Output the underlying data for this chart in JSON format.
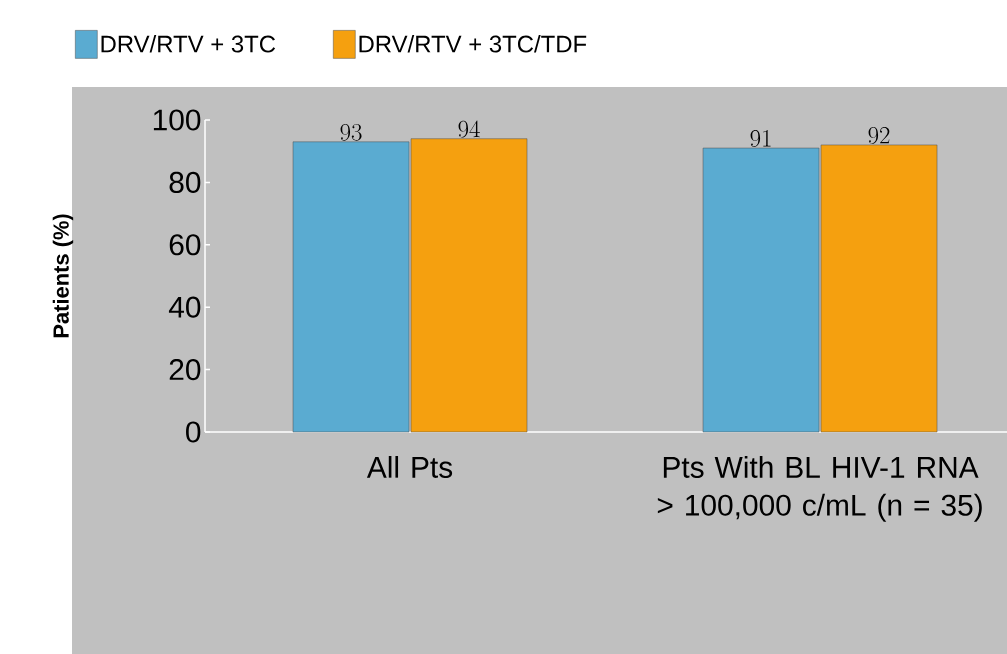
{
  "chart_data": {
    "type": "bar",
    "categories": [
      "All Pts",
      "Pts With BL HIV-1 RNA > 100,000 c/mL (n = 35)"
    ],
    "series": [
      {
        "name": "DRV/RTV + 3TC",
        "color": "#5aabd1",
        "values": [
          93,
          91
        ]
      },
      {
        "name": "DRV/RTV + 3TC/TDF",
        "color": "#f5a00f",
        "values": [
          94,
          92
        ]
      }
    ],
    "ylabel": "Patients (%)",
    "ylim": [
      0,
      100
    ],
    "yticks": [
      0,
      20,
      40,
      60,
      80,
      100
    ],
    "data_labels": true,
    "legend": "top left"
  }
}
